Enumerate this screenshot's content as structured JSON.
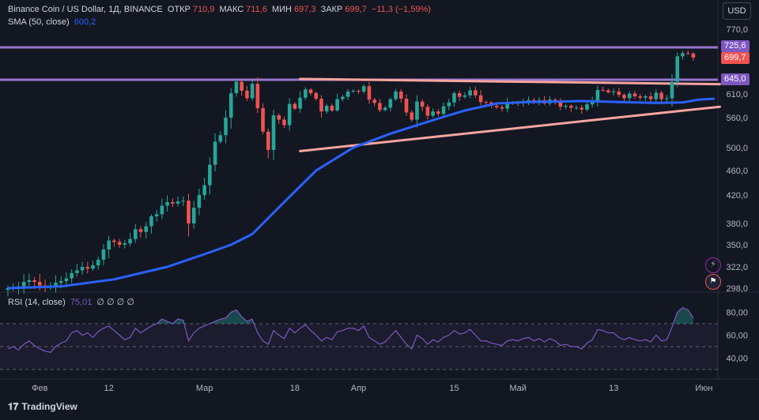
{
  "header": {
    "symbol": "Binance Coin / US Dollar, 1Д, BINANCE",
    "open_label": "ОТКР",
    "open_value": "710,9",
    "high_label": "МАКС",
    "high_value": "711,6",
    "low_label": "МИН",
    "low_value": "697,3",
    "close_label": "ЗАКР",
    "close_value": "699,7",
    "change": "−11,3 (−1,59%)",
    "sma_label": "SMA (50, close)",
    "sma_value": "600,2",
    "currency_button": "USD"
  },
  "rsi_legend": {
    "label": "RSI (14, close)",
    "value": "75,01",
    "extra": "∅ ∅ ∅ ∅"
  },
  "badges": {
    "resistance_top": "725,6",
    "last_price": "699,7",
    "resistance_low": "645,0"
  },
  "colors": {
    "up": "#26a69a",
    "down": "#ef5350",
    "sma": "#2962ff",
    "level": "#9575cd",
    "trend": "#f8a5a0",
    "rsi": "#7e57c2",
    "bg": "#131722"
  },
  "footer": {
    "brand": "TradingView"
  },
  "chart_data": {
    "type": "candlestick",
    "price_axis_ticks": [
      770,
      725.6,
      699.7,
      645,
      610,
      560,
      500,
      460,
      420,
      380,
      350,
      322,
      298
    ],
    "price_axis_labels": [
      "770,0",
      "725,6",
      "699,7",
      "645,0",
      "610,0",
      "560,0",
      "500,0",
      "460,0",
      "420,0",
      "380,0",
      "350,0",
      "322,0",
      "298,0"
    ],
    "x_labels": [
      "Фев",
      "12",
      "Мар",
      "18",
      "Апр",
      "15",
      "Май",
      "13",
      "Июн"
    ],
    "x_label_days": [
      6,
      19,
      37,
      54,
      66,
      84,
      96,
      114,
      131
    ],
    "horizontal_levels": [
      725.6,
      645.0
    ],
    "trendlines": [
      {
        "name": "upper",
        "from": [
          55,
          647
        ],
        "to": [
          134,
          634
        ]
      },
      {
        "name": "lower",
        "from": [
          55,
          494
        ],
        "to": [
          134,
          583
        ]
      }
    ],
    "closes": [
      298,
      299,
      300,
      305,
      307,
      305,
      301,
      300,
      300,
      304,
      306,
      309,
      315,
      318,
      322,
      320,
      324,
      331,
      344,
      356,
      354,
      350,
      352,
      358,
      372,
      368,
      376,
      390,
      393,
      405,
      410,
      408,
      411,
      412,
      380,
      402,
      420,
      436,
      470,
      512,
      525,
      560,
      612,
      640,
      618,
      601,
      635,
      580,
      532,
      496,
      565,
      556,
      545,
      589,
      579,
      602,
      621,
      612,
      600,
      573,
      585,
      575,
      599,
      604,
      616,
      618,
      616,
      629,
      598,
      591,
      576,
      581,
      599,
      616,
      600,
      571,
      556,
      594,
      583,
      564,
      573,
      568,
      584,
      592,
      612,
      604,
      607,
      619,
      607,
      593,
      592,
      585,
      582,
      579,
      591,
      592,
      590,
      595,
      597,
      592,
      597,
      590,
      598,
      593,
      583,
      585,
      581,
      581,
      577,
      588,
      596,
      620,
      619,
      614,
      616,
      608,
      601,
      611,
      605,
      602,
      605,
      599,
      613,
      599,
      601,
      640,
      703,
      711,
      710,
      699.7
    ],
    "sma": {
      "days": [
        0,
        10,
        20,
        30,
        37,
        42,
        46,
        52,
        58,
        65,
        72,
        80,
        86,
        92,
        98,
        104,
        108,
        115,
        122,
        127,
        130,
        133
      ],
      "values": [
        298,
        300,
        308,
        322,
        338,
        350,
        365,
        410,
        460,
        500,
        528,
        555,
        575,
        590,
        593,
        594,
        595,
        593,
        591,
        592,
        598,
        600
      ]
    },
    "rsi": {
      "range": [
        30,
        90
      ],
      "guides": [
        70,
        50,
        30
      ],
      "axis_labels": [
        "80,00",
        "60,00",
        "40,00"
      ],
      "values": [
        48,
        50,
        47,
        52,
        55,
        51,
        48,
        46,
        45,
        50,
        53,
        55,
        62,
        64,
        60,
        62,
        58,
        63,
        66,
        68,
        64,
        60,
        56,
        58,
        66,
        62,
        65,
        68,
        70,
        74,
        72,
        70,
        74,
        73,
        55,
        62,
        66,
        68,
        70,
        72,
        74,
        75,
        80,
        82,
        76,
        72,
        74,
        62,
        55,
        52,
        64,
        60,
        57,
        66,
        62,
        66,
        69,
        64,
        60,
        55,
        58,
        56,
        63,
        64,
        66,
        66,
        64,
        68,
        58,
        55,
        52,
        54,
        59,
        64,
        58,
        52,
        48,
        60,
        57,
        52,
        56,
        54,
        58,
        60,
        64,
        61,
        62,
        65,
        60,
        55,
        55,
        53,
        52,
        51,
        55,
        56,
        55,
        57,
        58,
        55,
        57,
        54,
        57,
        55,
        51,
        52,
        50,
        50,
        48,
        53,
        56,
        65,
        64,
        62,
        62,
        58,
        56,
        58,
        56,
        55,
        56,
        54,
        60,
        55,
        56,
        67,
        80,
        84,
        82,
        75.01
      ]
    }
  }
}
